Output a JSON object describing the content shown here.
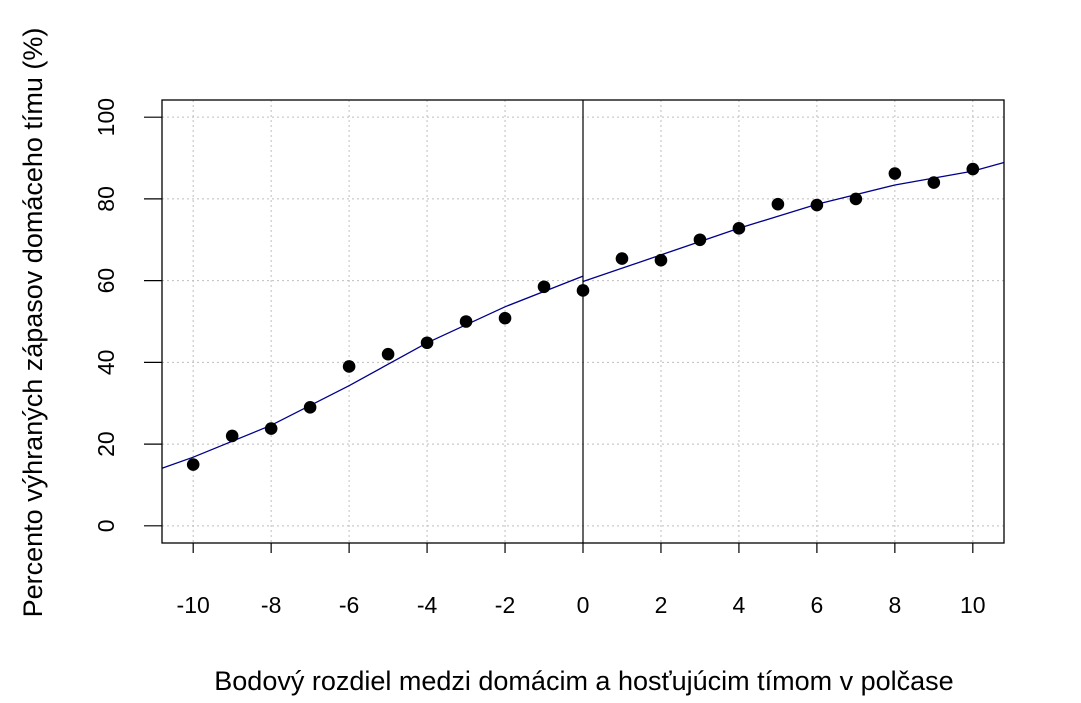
{
  "chart_data": {
    "type": "scatter",
    "title": "",
    "xlabel": "Bodový rozdiel medzi domácim a hosťujúcim tímom v polčase",
    "ylabel": "Percento výhraných zápasov domáceho tímu (%)",
    "xlim": [
      -10.8,
      10.8
    ],
    "ylim": [
      -4.2,
      104.2
    ],
    "xticks": [
      -10,
      -8,
      -6,
      -4,
      -2,
      0,
      2,
      4,
      6,
      8,
      10
    ],
    "xtick_labels": [
      "-10",
      "-8",
      "-6",
      "-4",
      "-2",
      "0",
      "2",
      "4",
      "6",
      "8",
      "10"
    ],
    "yticks": [
      0,
      20,
      40,
      60,
      80,
      100
    ],
    "ytick_labels": [
      "0",
      "20",
      "40",
      "60",
      "80",
      "100"
    ],
    "grid": true,
    "vline_x": 0,
    "x": [
      -10,
      -9,
      -8,
      -7,
      -6,
      -5,
      -4,
      -3,
      -2,
      -1,
      0,
      1,
      2,
      3,
      4,
      5,
      6,
      7,
      8,
      9,
      10
    ],
    "y": [
      15,
      22,
      23.8,
      29,
      39,
      42,
      44.8,
      50,
      50.8,
      58.5,
      57.6,
      65.4,
      65,
      70,
      72.8,
      78.7,
      78.5,
      80,
      86.2,
      84,
      87.3
    ],
    "fit_left": {
      "x": [
        -10.8,
        -10,
        -8,
        -6,
        -4,
        -2,
        0
      ],
      "y": [
        14.1,
        16.8,
        24.6,
        34.3,
        44.8,
        53.6,
        61.1
      ]
    },
    "fit_right": {
      "x": [
        0,
        2,
        4,
        6,
        8,
        10,
        10.8
      ],
      "y": [
        59.8,
        66.3,
        72.8,
        78.7,
        83.4,
        86.8,
        88.9
      ]
    },
    "colors": {
      "points": "#000000",
      "fit": "#00008b",
      "grid": "#bebebe"
    }
  }
}
